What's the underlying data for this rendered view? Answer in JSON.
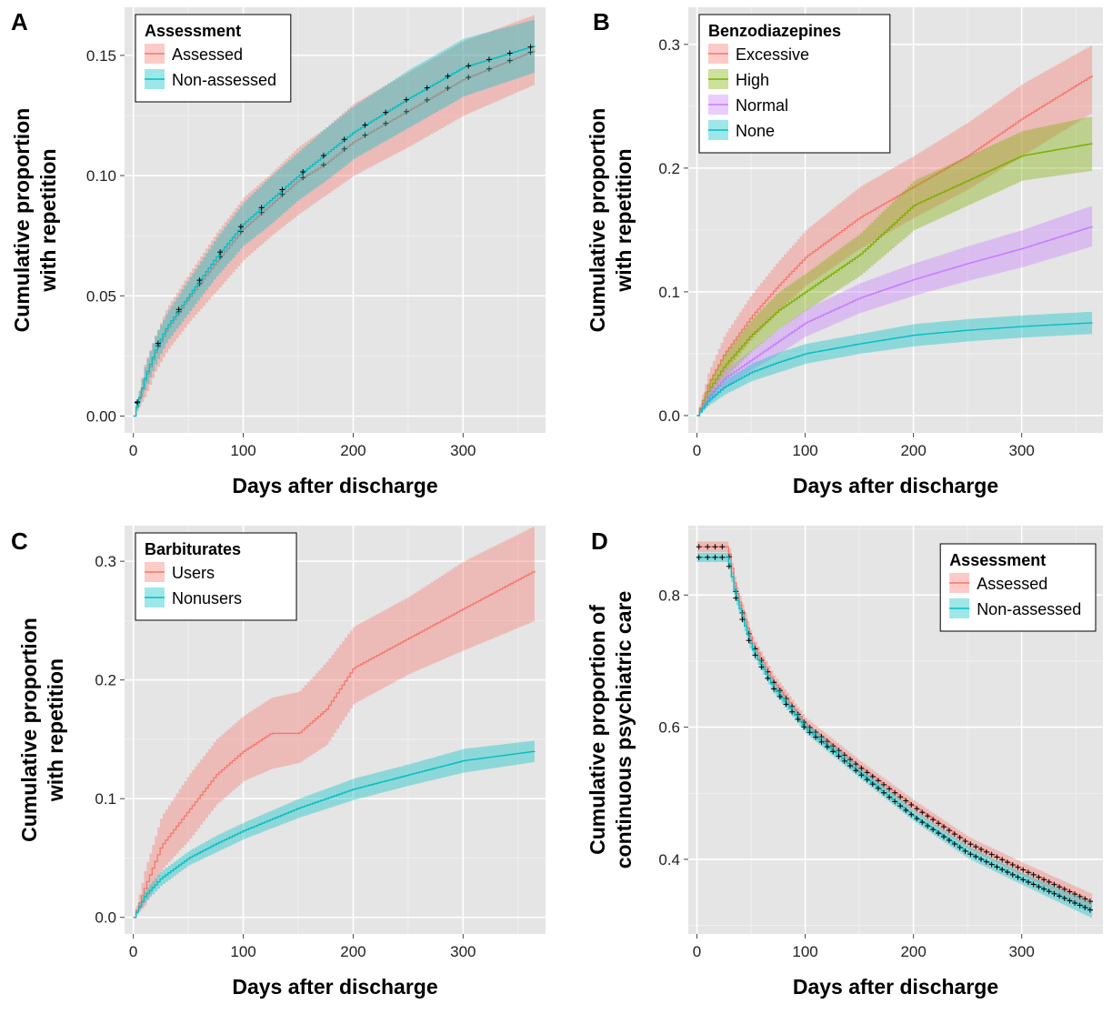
{
  "colors": {
    "red": "#F8766D",
    "teal": "#00BFC4",
    "green": "#7CAE00",
    "purple": "#C77CFF",
    "panel_bg": "#E5E5E5",
    "grid": "#FFFFFF"
  },
  "chart_data": [
    {
      "panel": "A",
      "type": "line",
      "xlabel": "Days after discharge",
      "ylabel": [
        "Cumulative proportion",
        "with repetition"
      ],
      "xlim": [
        -8,
        375
      ],
      "ylim": [
        -0.007,
        0.17
      ],
      "xticks": [
        0,
        100,
        200,
        300
      ],
      "yticks": [
        0.0,
        0.05,
        0.1,
        0.15
      ],
      "yticklabels": [
        "0.00",
        "0.05",
        "0.10",
        "0.15"
      ],
      "legend": {
        "title": "Assessment",
        "position": "top-left"
      },
      "censor_marks": true,
      "series": [
        {
          "name": "Assessed",
          "color": "#F8766D",
          "x": [
            0,
            10,
            20,
            30,
            50,
            75,
            100,
            125,
            150,
            175,
            200,
            250,
            300,
            365
          ],
          "y": [
            0,
            0.015,
            0.027,
            0.036,
            0.049,
            0.064,
            0.078,
            0.088,
            0.098,
            0.105,
            0.114,
            0.127,
            0.14,
            0.152
          ],
          "lower": [
            0,
            0.008,
            0.019,
            0.027,
            0.039,
            0.052,
            0.065,
            0.075,
            0.084,
            0.092,
            0.1,
            0.112,
            0.125,
            0.138
          ],
          "upper": [
            0,
            0.022,
            0.034,
            0.045,
            0.059,
            0.076,
            0.091,
            0.101,
            0.112,
            0.12,
            0.13,
            0.143,
            0.156,
            0.167
          ]
        },
        {
          "name": "Non-assessed",
          "color": "#00BFC4",
          "x": [
            0,
            10,
            20,
            30,
            50,
            75,
            100,
            125,
            150,
            175,
            200,
            250,
            300,
            365
          ],
          "y": [
            0,
            0.016,
            0.028,
            0.037,
            0.05,
            0.066,
            0.08,
            0.09,
            0.1,
            0.109,
            0.118,
            0.132,
            0.145,
            0.154
          ],
          "lower": [
            0,
            0.011,
            0.022,
            0.031,
            0.043,
            0.058,
            0.071,
            0.08,
            0.09,
            0.098,
            0.107,
            0.12,
            0.133,
            0.143
          ],
          "upper": [
            0,
            0.021,
            0.034,
            0.043,
            0.057,
            0.074,
            0.089,
            0.1,
            0.11,
            0.12,
            0.129,
            0.144,
            0.157,
            0.165
          ]
        }
      ]
    },
    {
      "panel": "B",
      "type": "line",
      "xlabel": "Days after discharge",
      "ylabel": [
        "Cumulative proportion",
        "with repetition"
      ],
      "xlim": [
        -8,
        375
      ],
      "ylim": [
        -0.014,
        0.33
      ],
      "xticks": [
        0,
        100,
        200,
        300
      ],
      "yticks": [
        0.0,
        0.1,
        0.2,
        0.3
      ],
      "yticklabels": [
        "0.0",
        "0.1",
        "0.2",
        "0.3"
      ],
      "legend": {
        "title": "Benzodiazepines",
        "position": "top-left"
      },
      "censor_marks": false,
      "series": [
        {
          "name": "Excessive",
          "color": "#F8766D",
          "x": [
            0,
            10,
            25,
            50,
            75,
            100,
            150,
            200,
            250,
            300,
            365
          ],
          "y": [
            0,
            0.025,
            0.05,
            0.08,
            0.105,
            0.128,
            0.16,
            0.185,
            0.21,
            0.24,
            0.275
          ],
          "lower": [
            0,
            0.015,
            0.035,
            0.062,
            0.085,
            0.105,
            0.135,
            0.16,
            0.183,
            0.21,
            0.245
          ],
          "upper": [
            0,
            0.035,
            0.065,
            0.098,
            0.125,
            0.15,
            0.185,
            0.21,
            0.237,
            0.268,
            0.3
          ]
        },
        {
          "name": "High",
          "color": "#7CAE00",
          "x": [
            0,
            10,
            25,
            50,
            75,
            100,
            150,
            200,
            250,
            300,
            365
          ],
          "y": [
            0,
            0.02,
            0.04,
            0.065,
            0.085,
            0.1,
            0.13,
            0.17,
            0.19,
            0.21,
            0.22
          ],
          "lower": [
            0,
            0.013,
            0.03,
            0.052,
            0.07,
            0.085,
            0.113,
            0.15,
            0.17,
            0.19,
            0.198
          ],
          "upper": [
            0,
            0.027,
            0.05,
            0.078,
            0.1,
            0.115,
            0.147,
            0.19,
            0.21,
            0.23,
            0.242
          ]
        },
        {
          "name": "Normal",
          "color": "#C77CFF",
          "x": [
            0,
            10,
            25,
            50,
            75,
            100,
            150,
            200,
            250,
            300,
            365
          ],
          "y": [
            0,
            0.015,
            0.03,
            0.045,
            0.06,
            0.075,
            0.095,
            0.11,
            0.123,
            0.135,
            0.153
          ],
          "lower": [
            0,
            0.01,
            0.023,
            0.037,
            0.05,
            0.064,
            0.083,
            0.097,
            0.109,
            0.12,
            0.137
          ],
          "upper": [
            0,
            0.02,
            0.037,
            0.053,
            0.07,
            0.086,
            0.107,
            0.123,
            0.137,
            0.15,
            0.17
          ]
        },
        {
          "name": "None",
          "color": "#00BFC4",
          "x": [
            0,
            10,
            25,
            50,
            75,
            100,
            150,
            200,
            250,
            300,
            365
          ],
          "y": [
            0,
            0.012,
            0.023,
            0.035,
            0.043,
            0.05,
            0.058,
            0.065,
            0.069,
            0.072,
            0.075
          ],
          "lower": [
            0,
            0.008,
            0.017,
            0.028,
            0.035,
            0.042,
            0.05,
            0.056,
            0.06,
            0.063,
            0.066
          ],
          "upper": [
            0,
            0.016,
            0.029,
            0.042,
            0.051,
            0.058,
            0.066,
            0.074,
            0.078,
            0.081,
            0.084
          ]
        }
      ]
    },
    {
      "panel": "C",
      "type": "line",
      "xlabel": "Days after discharge",
      "ylabel": [
        "Cumulative proportion",
        "with repetition"
      ],
      "xlim": [
        -8,
        375
      ],
      "ylim": [
        -0.014,
        0.33
      ],
      "xticks": [
        0,
        100,
        200,
        300
      ],
      "yticks": [
        0.0,
        0.1,
        0.2,
        0.3
      ],
      "yticklabels": [
        "0.0",
        "0.1",
        "0.2",
        "0.3"
      ],
      "legend": {
        "title": "Barbiturates",
        "position": "top-left"
      },
      "censor_marks": false,
      "series": [
        {
          "name": "Users",
          "color": "#F8766D",
          "x": [
            0,
            10,
            25,
            50,
            75,
            100,
            125,
            150,
            175,
            200,
            250,
            300,
            365
          ],
          "y": [
            0,
            0.025,
            0.06,
            0.09,
            0.12,
            0.14,
            0.155,
            0.155,
            0.175,
            0.21,
            0.235,
            0.26,
            0.292
          ],
          "lower": [
            0,
            0.01,
            0.04,
            0.065,
            0.095,
            0.115,
            0.125,
            0.13,
            0.145,
            0.18,
            0.205,
            0.225,
            0.25
          ],
          "upper": [
            0,
            0.04,
            0.085,
            0.12,
            0.15,
            0.17,
            0.185,
            0.19,
            0.215,
            0.245,
            0.27,
            0.3,
            0.33
          ]
        },
        {
          "name": "Nonusers",
          "color": "#00BFC4",
          "x": [
            0,
            10,
            25,
            50,
            75,
            100,
            150,
            200,
            250,
            300,
            365
          ],
          "y": [
            0,
            0.018,
            0.033,
            0.05,
            0.062,
            0.073,
            0.092,
            0.108,
            0.12,
            0.132,
            0.14
          ],
          "lower": [
            0,
            0.013,
            0.027,
            0.044,
            0.055,
            0.066,
            0.084,
            0.099,
            0.111,
            0.122,
            0.131
          ],
          "upper": [
            0,
            0.023,
            0.039,
            0.056,
            0.069,
            0.08,
            0.1,
            0.117,
            0.129,
            0.142,
            0.149
          ]
        }
      ]
    },
    {
      "panel": "D",
      "type": "line",
      "xlabel": "Days after discharge",
      "ylabel": [
        "Cumulative proportion of",
        "continuous psychiatric care"
      ],
      "xlim": [
        -8,
        375
      ],
      "ylim": [
        0.287,
        0.905
      ],
      "xticks": [
        0,
        100,
        200,
        300
      ],
      "yticks": [
        0.4,
        0.6,
        0.8
      ],
      "yticklabels": [
        "0.4",
        "0.6",
        "0.8"
      ],
      "legend": {
        "title": "Assessment",
        "position": "top-right"
      },
      "censor_marks": true,
      "series": [
        {
          "name": "Assessed",
          "color": "#F8766D",
          "x": [
            0,
            28,
            35,
            50,
            70,
            100,
            150,
            200,
            250,
            300,
            365
          ],
          "y": [
            0.873,
            0.873,
            0.81,
            0.73,
            0.67,
            0.605,
            0.54,
            0.48,
            0.425,
            0.385,
            0.335
          ],
          "lower": [
            0.865,
            0.865,
            0.8,
            0.72,
            0.66,
            0.596,
            0.531,
            0.471,
            0.416,
            0.375,
            0.323
          ],
          "upper": [
            0.881,
            0.881,
            0.82,
            0.74,
            0.68,
            0.614,
            0.549,
            0.489,
            0.434,
            0.395,
            0.347
          ]
        },
        {
          "name": "Non-assessed",
          "color": "#00BFC4",
          "x": [
            0,
            28,
            35,
            50,
            70,
            100,
            150,
            200,
            250,
            300,
            365
          ],
          "y": [
            0.857,
            0.857,
            0.8,
            0.72,
            0.66,
            0.598,
            0.53,
            0.465,
            0.41,
            0.37,
            0.322
          ],
          "lower": [
            0.85,
            0.85,
            0.792,
            0.712,
            0.652,
            0.59,
            0.522,
            0.457,
            0.401,
            0.361,
            0.31
          ],
          "upper": [
            0.864,
            0.864,
            0.808,
            0.728,
            0.668,
            0.606,
            0.538,
            0.473,
            0.419,
            0.379,
            0.334
          ]
        }
      ]
    }
  ]
}
